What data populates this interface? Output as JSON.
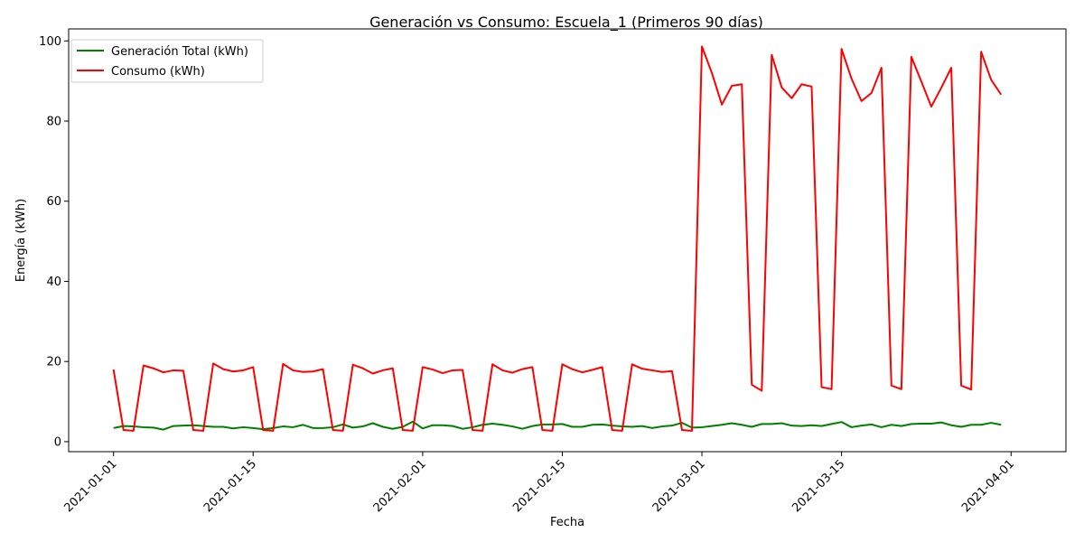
{
  "chart_data": {
    "type": "line",
    "title": "Generación vs Consumo: Escuela_1 (Primeros 90 días)",
    "xlabel": "Fecha",
    "ylabel": "Energía (kWh)",
    "x_start": "2021-01-01",
    "x_tick_labels": [
      "2021-01-01",
      "2021-01-15",
      "2021-02-01",
      "2021-02-15",
      "2021-03-01",
      "2021-03-15",
      "2021-04-01"
    ],
    "y_ticks": [
      0,
      20,
      40,
      60,
      80,
      100
    ],
    "ylim": [
      -2.5,
      103
    ],
    "grid": false,
    "legend_position": "top-left",
    "series": [
      {
        "name": "Generación Total (kWh)",
        "color": "#008000",
        "values": [
          3.4,
          3.9,
          3.8,
          3.6,
          3.5,
          3.0,
          3.9,
          4.0,
          4.1,
          3.9,
          3.7,
          3.7,
          3.3,
          3.6,
          3.4,
          3.1,
          3.4,
          3.8,
          3.6,
          4.2,
          3.4,
          3.4,
          3.6,
          4.3,
          3.5,
          3.8,
          4.6,
          3.7,
          3.2,
          3.7,
          5.0,
          3.3,
          4.1,
          4.1,
          3.9,
          3.2,
          3.6,
          4.2,
          4.5,
          4.2,
          3.8,
          3.2,
          3.9,
          4.3,
          4.3,
          4.4,
          3.7,
          3.7,
          4.2,
          4.3,
          4.0,
          3.8,
          3.7,
          3.9,
          3.4,
          3.8,
          4.0,
          4.7,
          3.5,
          3.6,
          3.9,
          4.2,
          4.6,
          4.2,
          3.7,
          4.4,
          4.4,
          4.6,
          4.0,
          3.9,
          4.1,
          3.9,
          4.4,
          4.9,
          3.6,
          4.0,
          4.3,
          3.6,
          4.2,
          3.9,
          4.4,
          4.5,
          4.5,
          4.8,
          4.1,
          3.7,
          4.2,
          4.2,
          4.7,
          4.2
        ]
      },
      {
        "name": "Consumo (kWh)",
        "color": "#ff0000",
        "values": [
          18.0,
          2.9,
          2.7,
          19.0,
          18.3,
          17.3,
          17.8,
          17.7,
          2.9,
          2.7,
          19.5,
          18.1,
          17.5,
          17.8,
          18.6,
          2.9,
          2.7,
          19.4,
          17.8,
          17.4,
          17.5,
          18.1,
          2.9,
          2.7,
          19.2,
          18.3,
          17.0,
          17.8,
          18.3,
          2.9,
          2.7,
          18.6,
          18.0,
          17.1,
          17.8,
          17.9,
          2.9,
          2.7,
          19.3,
          17.8,
          17.2,
          18.1,
          18.6,
          2.9,
          2.7,
          19.3,
          18.1,
          17.3,
          17.9,
          18.6,
          2.9,
          2.7,
          19.3,
          18.2,
          17.8,
          17.4,
          17.6,
          2.9,
          2.7,
          98.6,
          92.0,
          84.1,
          88.8,
          89.2,
          14.2,
          12.7,
          96.5,
          88.4,
          85.7,
          89.2,
          88.6,
          13.6,
          13.1,
          98.0,
          90.6,
          85.0,
          87.0,
          93.3,
          14.0,
          13.1,
          96.0,
          89.9,
          83.6,
          88.3,
          93.3,
          14.0,
          13.0,
          97.3,
          90.3,
          86.6
        ]
      }
    ]
  }
}
